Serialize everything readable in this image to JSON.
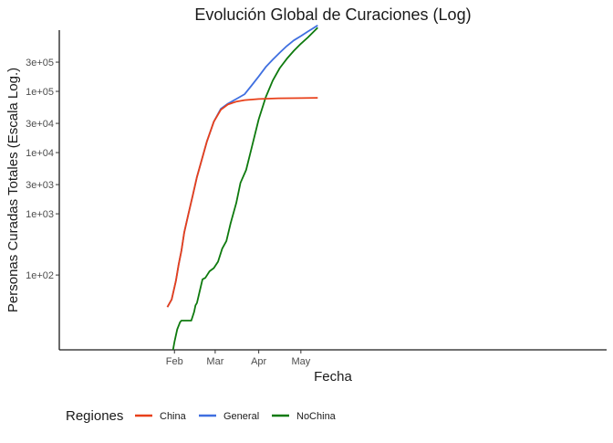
{
  "chart_data": {
    "type": "line",
    "title": "Evolución Global de Curaciones (Log)",
    "xlabel": "Fecha",
    "ylabel": "Personas Curadas Totales (Escala Log.)",
    "y_scale": "log10",
    "x_range": [
      "2020-01-22",
      "2020-05-13"
    ],
    "y_range": [
      6,
      1000000
    ],
    "y_ticks": [
      {
        "value": 100,
        "label": "1e+02"
      },
      {
        "value": 1000,
        "label": "1e+03"
      },
      {
        "value": 3000,
        "label": "3e+03"
      },
      {
        "value": 10000,
        "label": "1e+04"
      },
      {
        "value": 30000,
        "label": "3e+04"
      },
      {
        "value": 100000,
        "label": "1e+05"
      },
      {
        "value": 300000,
        "label": "3e+05"
      }
    ],
    "x_ticks": [
      {
        "value": "2020-02-01",
        "label": "Feb"
      },
      {
        "value": "2020-03-01",
        "label": "Mar"
      },
      {
        "value": "2020-04-01",
        "label": "Apr"
      },
      {
        "value": "2020-05-01",
        "label": "May"
      }
    ],
    "grid": false,
    "legend": {
      "title": "Regiones",
      "position": "bottom-left"
    },
    "series": [
      {
        "name": "China",
        "color": "#E8401A",
        "points": [
          [
            "2020-01-27",
            30
          ],
          [
            "2020-01-30",
            40
          ],
          [
            "2020-02-02",
            80
          ],
          [
            "2020-02-04",
            150
          ],
          [
            "2020-02-06",
            250
          ],
          [
            "2020-02-08",
            500
          ],
          [
            "2020-02-11",
            1000
          ],
          [
            "2020-02-14",
            2000
          ],
          [
            "2020-02-17",
            4000
          ],
          [
            "2020-02-20",
            7000
          ],
          [
            "2020-02-24",
            15000
          ],
          [
            "2020-02-29",
            32000
          ],
          [
            "2020-03-05",
            50000
          ],
          [
            "2020-03-10",
            61000
          ],
          [
            "2020-03-16",
            68000
          ],
          [
            "2020-03-22",
            72000
          ],
          [
            "2020-04-01",
            75000
          ],
          [
            "2020-04-15",
            77000
          ],
          [
            "2020-05-01",
            77500
          ],
          [
            "2020-05-13",
            78500
          ]
        ]
      },
      {
        "name": "General",
        "color": "#3F6FE0",
        "points": [
          [
            "2020-01-27",
            30
          ],
          [
            "2020-01-30",
            40
          ],
          [
            "2020-02-02",
            80
          ],
          [
            "2020-02-04",
            150
          ],
          [
            "2020-02-06",
            250
          ],
          [
            "2020-02-08",
            500
          ],
          [
            "2020-02-11",
            1000
          ],
          [
            "2020-02-14",
            2000
          ],
          [
            "2020-02-17",
            4000
          ],
          [
            "2020-02-20",
            7000
          ],
          [
            "2020-02-24",
            15000
          ],
          [
            "2020-02-29",
            32000
          ],
          [
            "2020-03-05",
            52000
          ],
          [
            "2020-03-10",
            63000
          ],
          [
            "2020-03-16",
            75000
          ],
          [
            "2020-03-22",
            90000
          ],
          [
            "2020-03-27",
            125000
          ],
          [
            "2020-04-01",
            175000
          ],
          [
            "2020-04-06",
            250000
          ],
          [
            "2020-04-11",
            330000
          ],
          [
            "2020-04-16",
            430000
          ],
          [
            "2020-04-21",
            550000
          ],
          [
            "2020-04-26",
            680000
          ],
          [
            "2020-05-01",
            800000
          ],
          [
            "2020-05-06",
            950000
          ],
          [
            "2020-05-09",
            1050000
          ],
          [
            "2020-05-13",
            1200000
          ]
        ]
      },
      {
        "name": "NoChina",
        "color": "#0E7A0E",
        "points": [
          [
            "2020-01-31",
            6
          ],
          [
            "2020-02-01",
            8
          ],
          [
            "2020-02-03",
            13
          ],
          [
            "2020-02-05",
            17
          ],
          [
            "2020-02-06",
            18
          ],
          [
            "2020-02-10",
            18
          ],
          [
            "2020-02-13",
            18
          ],
          [
            "2020-02-15",
            25
          ],
          [
            "2020-02-16",
            32
          ],
          [
            "2020-02-17",
            35
          ],
          [
            "2020-02-19",
            55
          ],
          [
            "2020-02-21",
            85
          ],
          [
            "2020-02-23",
            90
          ],
          [
            "2020-02-26",
            115
          ],
          [
            "2020-02-29",
            130
          ],
          [
            "2020-03-03",
            165
          ],
          [
            "2020-03-06",
            270
          ],
          [
            "2020-03-09",
            360
          ],
          [
            "2020-03-12",
            700
          ],
          [
            "2020-03-16",
            1500
          ],
          [
            "2020-03-19",
            3200
          ],
          [
            "2020-03-23",
            5200
          ],
          [
            "2020-03-27",
            12000
          ],
          [
            "2020-04-01",
            35000
          ],
          [
            "2020-04-06",
            80000
          ],
          [
            "2020-04-11",
            150000
          ],
          [
            "2020-04-16",
            240000
          ],
          [
            "2020-04-21",
            340000
          ],
          [
            "2020-04-26",
            460000
          ],
          [
            "2020-05-01",
            600000
          ],
          [
            "2020-05-06",
            760000
          ],
          [
            "2020-05-13",
            1100000
          ]
        ]
      }
    ]
  }
}
